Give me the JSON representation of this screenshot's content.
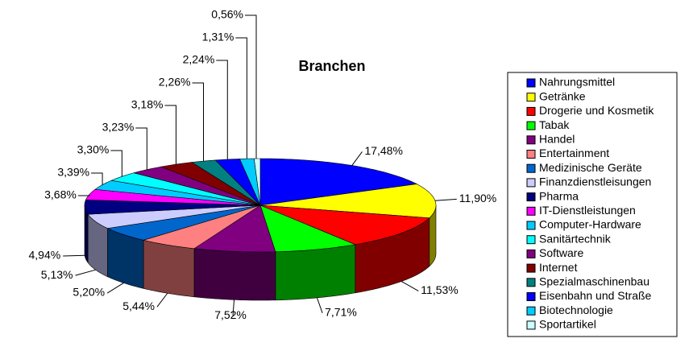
{
  "chart_data": {
    "type": "pie",
    "title": "Branchen",
    "categories": [
      "Nahrungsmittel",
      "Getränke",
      "Drogerie und Kosmetik",
      "Tabak",
      "Handel",
      "Entertainment",
      "Medizinische Geräte",
      "Finanzdienstleisungen",
      "Pharma",
      "IT-Dienstleistungen",
      "Computer-Hardware",
      "Sanitärtechnik",
      "Software",
      "Internet",
      "Spezialmaschinenbau",
      "Eisenbahn und Straße",
      "Biotechnologie",
      "Sportartikel"
    ],
    "values": [
      17.48,
      11.9,
      11.53,
      7.71,
      7.52,
      5.44,
      5.2,
      5.13,
      4.94,
      3.68,
      3.39,
      3.3,
      3.23,
      3.18,
      2.26,
      2.24,
      1.31,
      0.56
    ],
    "value_labels": [
      "17,48%",
      "11,90%",
      "11,53%",
      "7,71%",
      "7,52%",
      "5,44%",
      "5,20%",
      "5,13%",
      "4,94%",
      "3,68%",
      "3,39%",
      "3,30%",
      "3,23%",
      "3,18%",
      "2,26%",
      "2,24%",
      "1,31%",
      "0,56%"
    ],
    "colors": [
      "#0000ff",
      "#ffff00",
      "#ff0000",
      "#00ff00",
      "#800080",
      "#ff8080",
      "#0066cc",
      "#ccccff",
      "#000080",
      "#ff00ff",
      "#00ccff",
      "#00ffff",
      "#800080",
      "#800000",
      "#008080",
      "#0000ff",
      "#00ccff",
      "#ccffff"
    ],
    "legend": "right"
  }
}
